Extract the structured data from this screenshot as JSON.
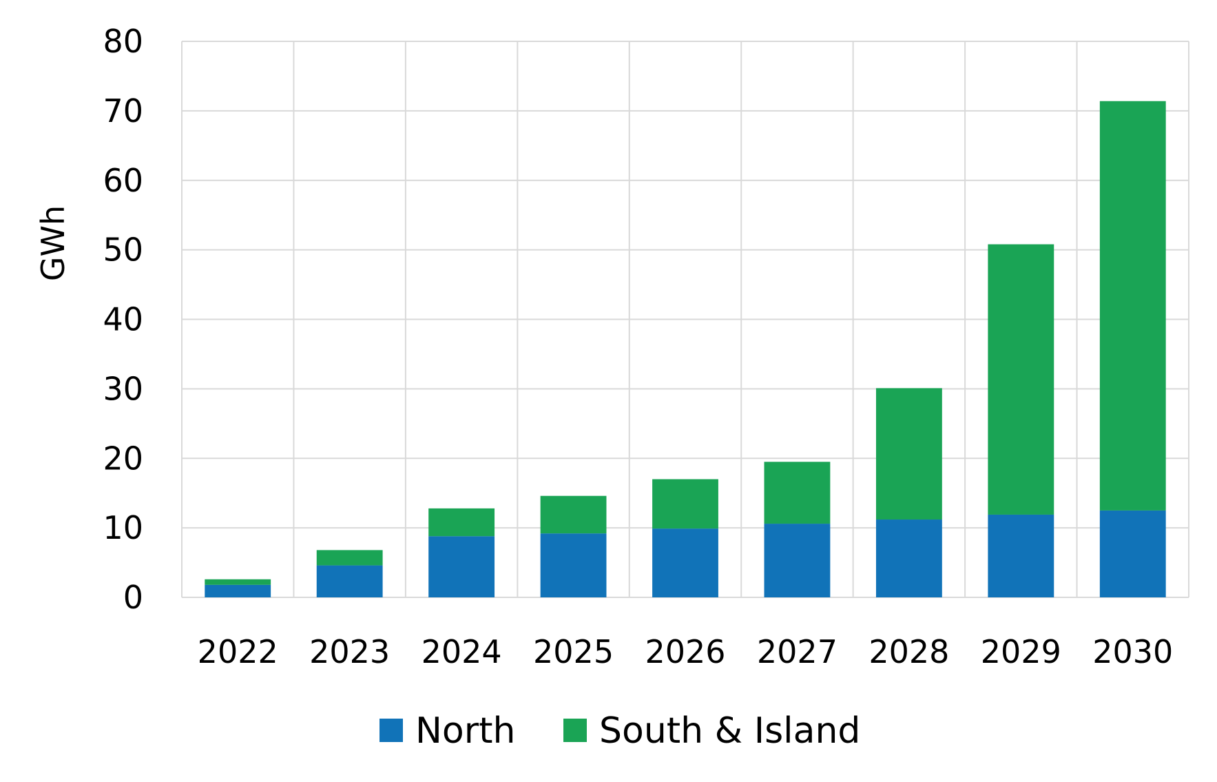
{
  "chart_data": {
    "type": "bar",
    "stacked": true,
    "categories": [
      "2022",
      "2023",
      "2024",
      "2025",
      "2026",
      "2027",
      "2028",
      "2029",
      "2030"
    ],
    "series": [
      {
        "name": "North",
        "color": "#1173b8",
        "values": [
          1.8,
          4.6,
          8.8,
          9.2,
          9.9,
          10.6,
          11.2,
          11.9,
          12.5
        ]
      },
      {
        "name": "South & Island",
        "color": "#1aa455",
        "values": [
          0.8,
          2.2,
          4.0,
          5.4,
          7.1,
          8.9,
          18.9,
          38.9,
          58.9
        ]
      }
    ],
    "title": "",
    "xlabel": "",
    "ylabel": "GWh",
    "ylim": [
      0,
      80
    ],
    "yticks": [
      0,
      10,
      20,
      30,
      40,
      50,
      60,
      70,
      80
    ],
    "grid": true,
    "legend_position": "bottom"
  }
}
